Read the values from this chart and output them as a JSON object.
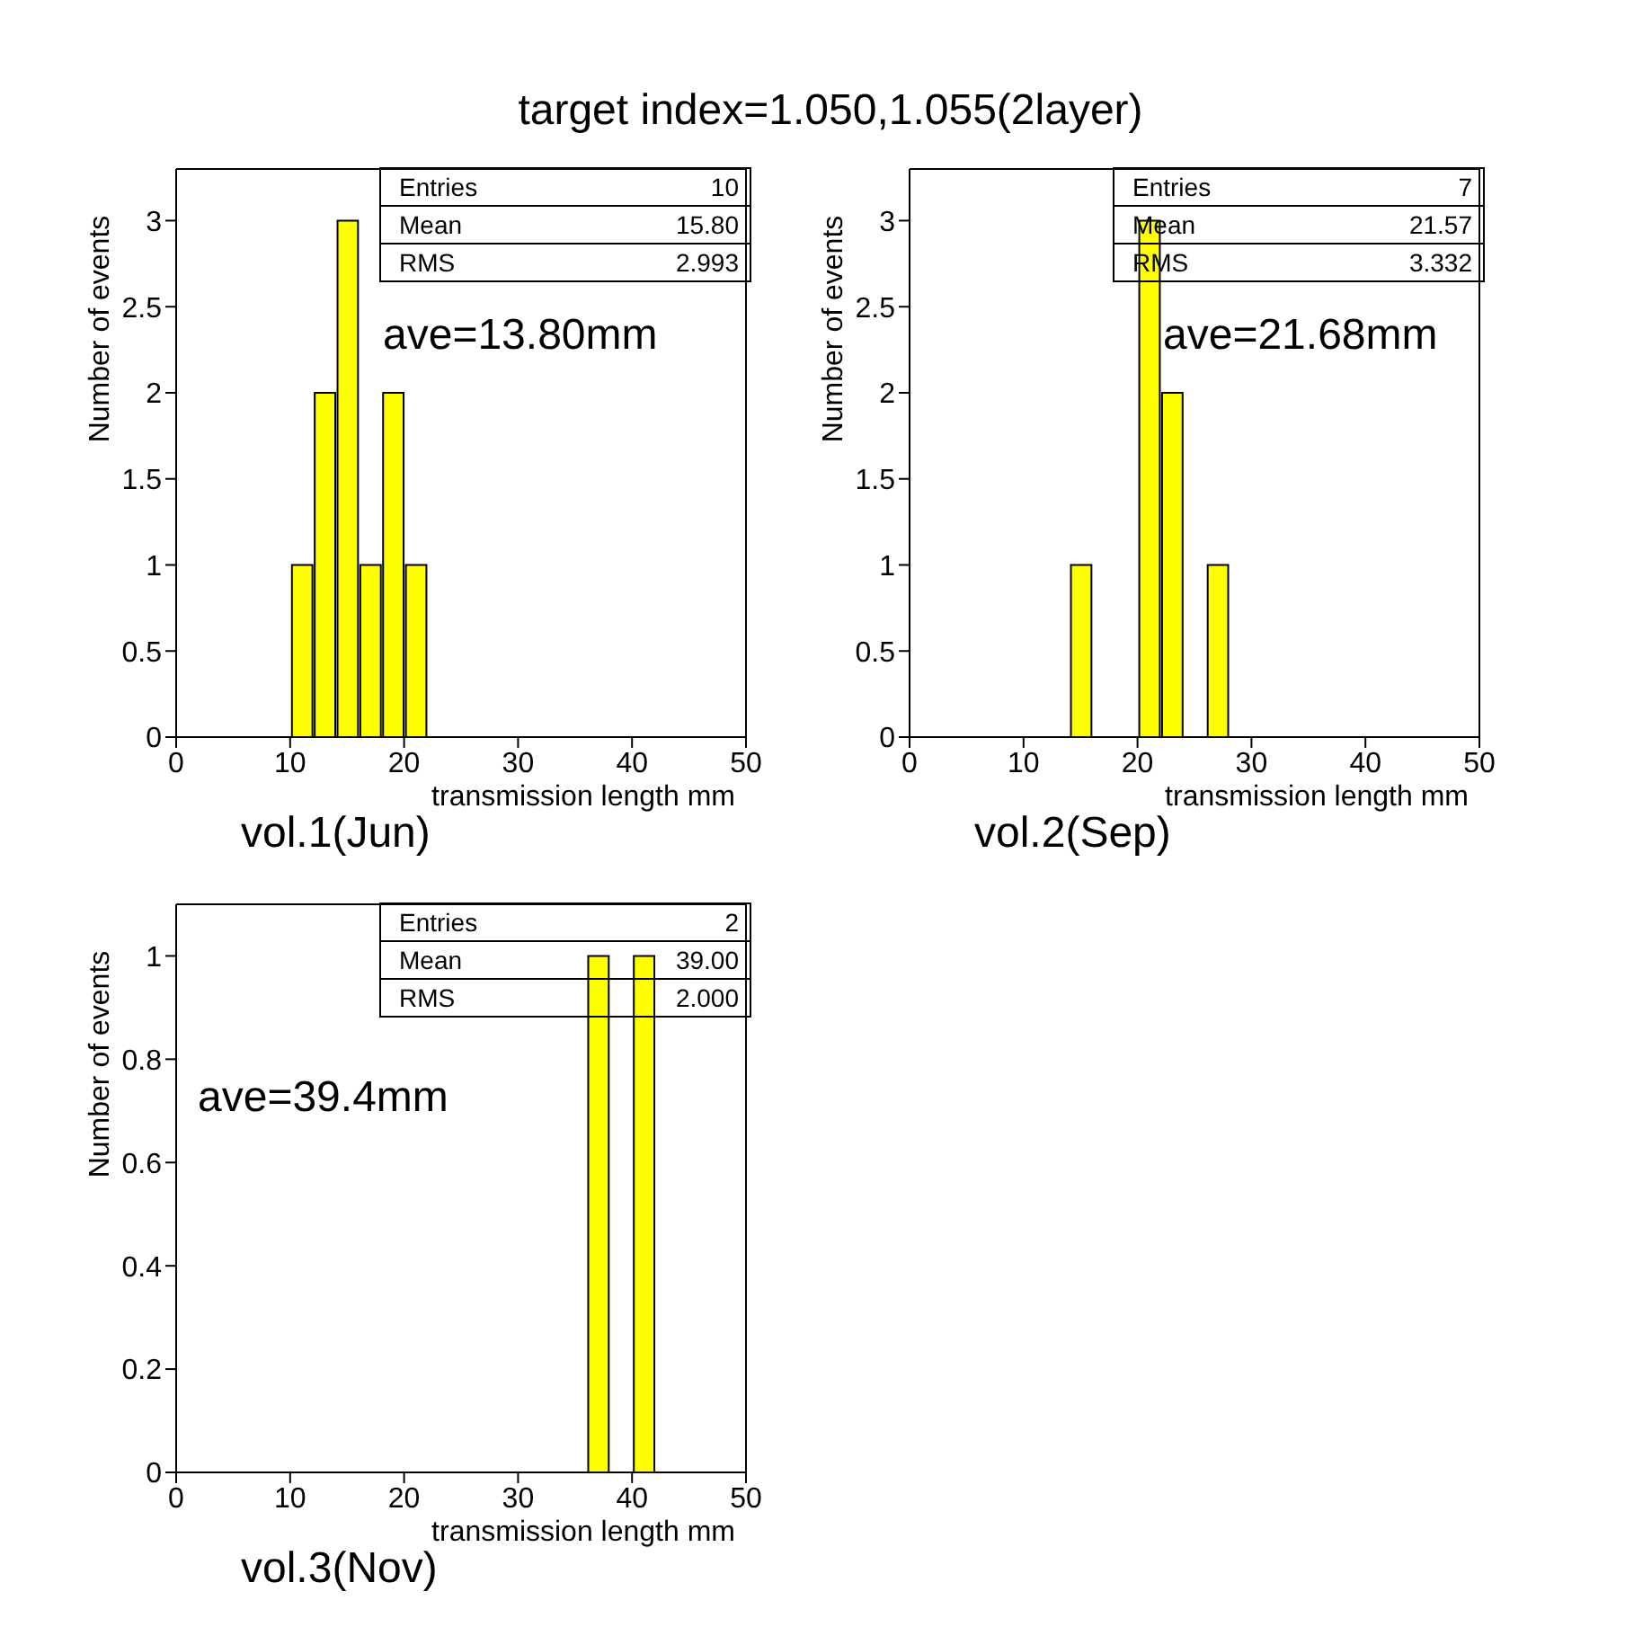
{
  "chart_data": [
    {
      "type": "histogram",
      "title": "target index=1.050,1.055(2layer)",
      "subtitle": "vol.1(Jun)",
      "xlabel": "transmission length mm",
      "ylabel": "Number of events",
      "bins": [
        10,
        12,
        14,
        16,
        18,
        20,
        22
      ],
      "values": [
        1,
        2,
        3,
        1,
        2,
        1
      ],
      "color": "#ffff00",
      "xlim": [
        0,
        50
      ],
      "xticks": [
        0,
        10,
        20,
        30,
        40,
        50
      ],
      "ylim": [
        0,
        3.3
      ],
      "yticks": [
        0,
        0.5,
        1,
        1.5,
        2,
        2.5,
        3
      ],
      "grid": false,
      "legend": false,
      "annotations": [
        "Entries",
        "10",
        "Mean",
        "15.80",
        "RMS",
        "2.993",
        "ave=13.80mm"
      ]
    },
    {
      "type": "histogram",
      "subtitle": "vol.2(Sep)",
      "xlabel": "transmission length mm",
      "ylabel": "Number of events",
      "bins": [
        14,
        16,
        18,
        20,
        22,
        24,
        26,
        28
      ],
      "values": [
        1,
        0,
        0,
        3,
        2,
        0,
        1
      ],
      "color": "#ffff00",
      "xlim": [
        0,
        50
      ],
      "xticks": [
        0,
        10,
        20,
        30,
        40,
        50
      ],
      "ylim": [
        0,
        3.3
      ],
      "yticks": [
        0,
        0.5,
        1,
        1.5,
        2,
        2.5,
        3
      ],
      "grid": false,
      "legend": false,
      "annotations": [
        "Entries",
        "7",
        "Mean",
        "21.57",
        "RMS",
        "3.332",
        "ave=21.68mm"
      ]
    },
    {
      "type": "histogram",
      "subtitle": "vol.3(Nov)",
      "xlabel": "transmission length mm",
      "ylabel": "Number of events",
      "bins": [
        36,
        38,
        40,
        42
      ],
      "values": [
        1,
        0,
        1
      ],
      "color": "#ffff00",
      "xlim": [
        0,
        50
      ],
      "xticks": [
        0,
        10,
        20,
        30,
        40,
        50
      ],
      "ylim": [
        0,
        1.1
      ],
      "yticks": [
        0,
        0.2,
        0.4,
        0.6,
        0.8,
        1
      ],
      "grid": false,
      "legend": false,
      "annotations": [
        "Entries",
        "2",
        "Mean",
        "39.00",
        "RMS",
        "2.000",
        "ave=39.4mm"
      ]
    }
  ]
}
